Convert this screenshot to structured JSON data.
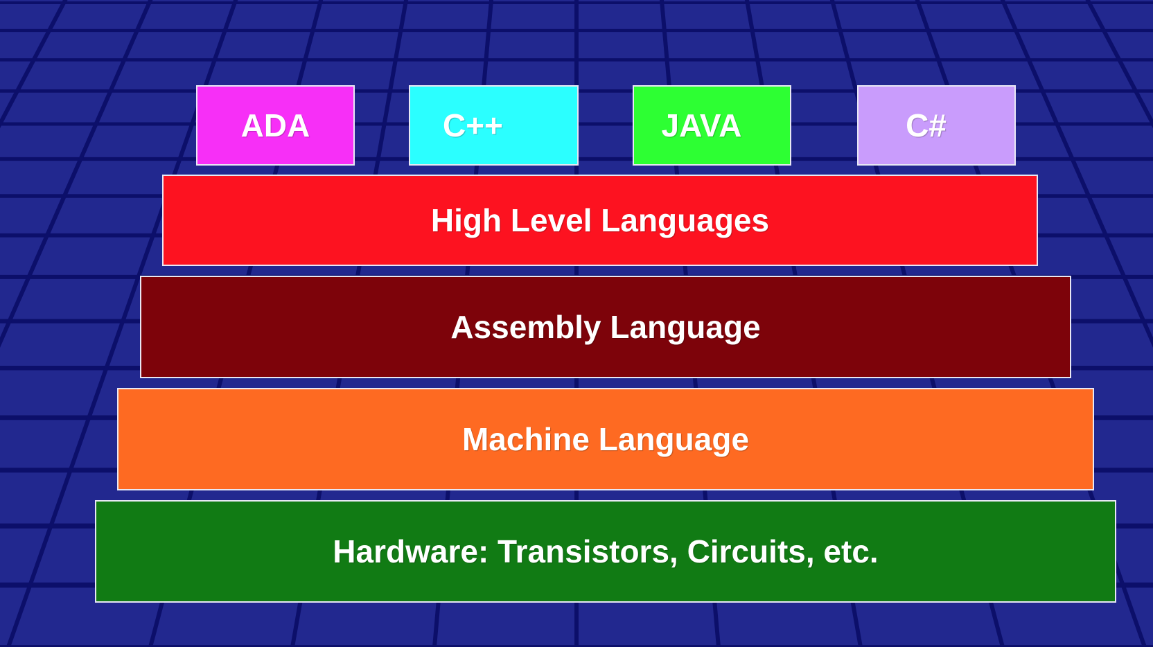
{
  "slide": {
    "background_color": "#22288f",
    "grid_line_color": "#0c0f6a"
  },
  "languages": [
    {
      "label": "ADA",
      "color": "#f72ff7"
    },
    {
      "label": "C++",
      "color": "#2bffff"
    },
    {
      "label": "JAVA",
      "color": "#2dff33"
    },
    {
      "label": "C#",
      "color": "#c99cfc"
    }
  ],
  "layers": [
    {
      "label": "High Level Languages",
      "color": "#fd1220"
    },
    {
      "label": "Assembly Language",
      "color": "#7d030a"
    },
    {
      "label": "Machine Language",
      "color": "#fe6a22"
    },
    {
      "label": "Hardware: Transistors, Circuits, etc.",
      "color": "#117b14"
    }
  ]
}
